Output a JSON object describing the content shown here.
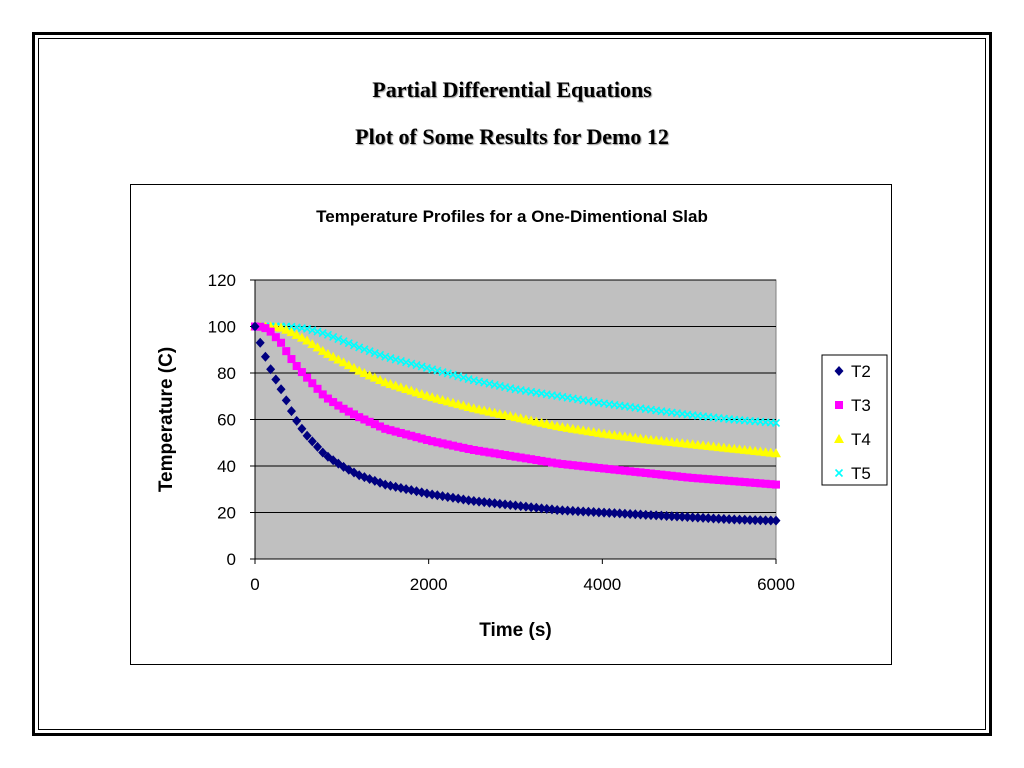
{
  "slide": {
    "heading_line1": "Partial Differential Equations",
    "heading_line2": "Plot of Some Results for Demo 12"
  },
  "chart_data": {
    "type": "scatter",
    "title": "Temperature Profiles for a One-Dimentional Slab",
    "xlabel": "Time (s)",
    "ylabel": "Temperature (C)",
    "xlim": [
      0,
      6000
    ],
    "ylim": [
      0,
      120
    ],
    "x_ticks": [
      0,
      2000,
      4000,
      6000
    ],
    "y_ticks": [
      0,
      20,
      40,
      60,
      80,
      100,
      120
    ],
    "grid": "horizontal",
    "plot_background": "#c0c0c0",
    "legend_position": "right",
    "x": [
      0,
      50,
      100,
      150,
      200,
      300,
      400,
      500,
      600,
      800,
      1000,
      1200,
      1500,
      2000,
      2500,
      3000,
      3500,
      4000,
      4500,
      5000,
      5500,
      6000
    ],
    "series": [
      {
        "name": "T2",
        "marker": "diamond",
        "color": "#000080",
        "values": [
          100,
          94,
          89,
          84,
          80,
          73,
          65,
          58,
          53,
          45,
          40,
          36,
          32,
          28,
          25,
          23,
          21,
          20,
          19,
          18,
          17,
          16.5
        ]
      },
      {
        "name": "T3",
        "marker": "square",
        "color": "#ff00ff",
        "values": [
          100,
          100,
          99.5,
          99,
          97,
          93,
          87,
          82,
          78,
          70,
          65,
          61,
          56,
          51,
          47,
          44,
          41,
          39,
          37,
          35,
          33.5,
          32
        ]
      },
      {
        "name": "T4",
        "marker": "triangle",
        "color": "#ffff00",
        "values": [
          100,
          100,
          100,
          100,
          100,
          99.5,
          98,
          96,
          94,
          89,
          85,
          81,
          76,
          70,
          65,
          61,
          57,
          54,
          51.5,
          49.5,
          47.5,
          45.5
        ]
      },
      {
        "name": "T5",
        "marker": "x",
        "color": "#00ffff",
        "values": [
          100,
          100,
          100,
          100,
          100,
          100,
          100,
          99.5,
          99,
          97,
          94,
          91,
          87,
          82,
          77,
          73,
          70,
          67,
          64.5,
          62,
          60,
          58.5
        ]
      }
    ]
  }
}
